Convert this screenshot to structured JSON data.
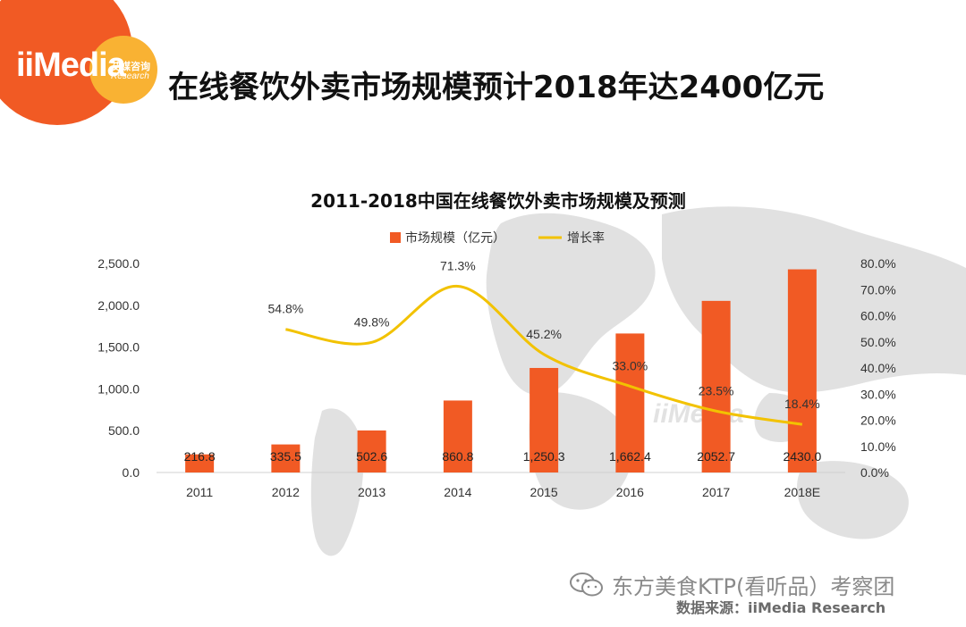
{
  "logo": {
    "brand": "iiMedia",
    "brand_cn": "艾媒咨询",
    "brand_en": "Research"
  },
  "page_title": "在线餐饮外卖市场规模预计2018年达2400亿元",
  "chart_data": {
    "type": "bar",
    "title": "2011-2018中国在线餐饮外卖市场规模及预测",
    "categories": [
      "2011",
      "2012",
      "2013",
      "2014",
      "2015",
      "2016",
      "2017",
      "2018E"
    ],
    "series": [
      {
        "name": "市场规模（亿元）",
        "kind": "bar",
        "axis": "left",
        "color": "#f15a24",
        "values": [
          216.8,
          335.5,
          502.6,
          860.8,
          1250.3,
          1662.4,
          2052.7,
          2430.0
        ],
        "labels": [
          "216.8",
          "335.5",
          "502.6",
          "860.8",
          "1,250.3",
          "1,662.4",
          "2052.7",
          "2430.0"
        ]
      },
      {
        "name": "增长率",
        "kind": "line",
        "axis": "right",
        "color": "#f2c200",
        "values": [
          null,
          54.8,
          49.8,
          71.3,
          45.2,
          33.0,
          23.5,
          18.4
        ],
        "labels": [
          "",
          "54.8%",
          "49.8%",
          "71.3%",
          "45.2%",
          "33.0%",
          "23.5%",
          "18.4%"
        ]
      }
    ],
    "left_axis": {
      "ylim": [
        0,
        2500
      ],
      "ticks": [
        "0.0",
        "500.0",
        "1,000.0",
        "1,500.0",
        "2,000.0",
        "2,500.0"
      ],
      "tick_values": [
        0,
        500,
        1000,
        1500,
        2000,
        2500
      ]
    },
    "right_axis": {
      "ylim": [
        0,
        80
      ],
      "ticks": [
        "0.0%",
        "10.0%",
        "20.0%",
        "30.0%",
        "40.0%",
        "50.0%",
        "60.0%",
        "70.0%",
        "80.0%"
      ],
      "tick_values": [
        0,
        10,
        20,
        30,
        40,
        50,
        60,
        70,
        80
      ]
    },
    "legend_position": "top-center",
    "grid": false,
    "chart_watermark": "iiMedia"
  },
  "footer": {
    "watermark_text": "东方美食KTP(看听品）考察团",
    "source": "数据来源：iiMedia Research"
  },
  "colors": {
    "brand_orange": "#f15a24",
    "brand_yellow": "#f9b233",
    "line_yellow": "#f2c200"
  }
}
